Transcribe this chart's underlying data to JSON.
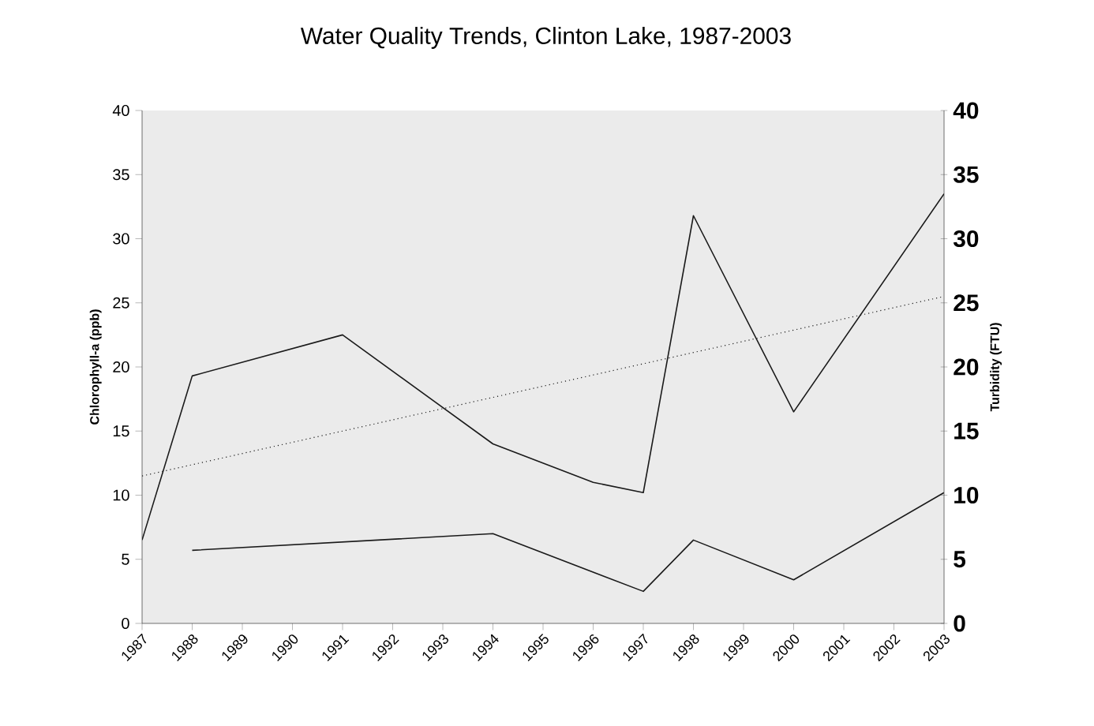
{
  "chart_data": {
    "type": "line",
    "title": "Water Quality Trends, Clinton Lake, 1987-2003",
    "xlabel": null,
    "ylabel": "Chlorophyll-a (ppb)",
    "y2label": "Turbidity (FTU)",
    "xlim": [
      1987,
      2003
    ],
    "xticks": [
      1987,
      1988,
      1989,
      1990,
      1991,
      1992,
      1993,
      1994,
      1995,
      1996,
      1997,
      1998,
      1999,
      2000,
      2001,
      2002,
      2003
    ],
    "ylim": [
      0,
      40
    ],
    "yticks": [
      0,
      5,
      10,
      15,
      20,
      25,
      30,
      35,
      40
    ],
    "y2lim": [
      0,
      40
    ],
    "y2ticks": [
      0,
      5,
      10,
      15,
      20,
      25,
      30,
      35,
      40
    ],
    "series": [
      {
        "color": "#1a1a1a",
        "axis": "y2",
        "line_style": "solid",
        "x": [
          1987,
          1988,
          1991,
          1994,
          1996,
          1997,
          1998,
          2000,
          2003
        ],
        "values": [
          6.5,
          19.3,
          22.5,
          14,
          11,
          10.2,
          31.8,
          16.5,
          33.5
        ]
      },
      {
        "color": "#1a1a1a",
        "axis": "y",
        "line_style": "solid",
        "x": [
          1988,
          1994,
          1997,
          1998,
          2000,
          2003
        ],
        "values": [
          5.7,
          7,
          2.5,
          6.5,
          3.4,
          10.2
        ]
      },
      {
        "color": "#1a1a1a",
        "axis": "y2",
        "line_style": "dotted",
        "x": [
          1987,
          2003
        ],
        "values": [
          11.5,
          25.5
        ]
      }
    ]
  }
}
